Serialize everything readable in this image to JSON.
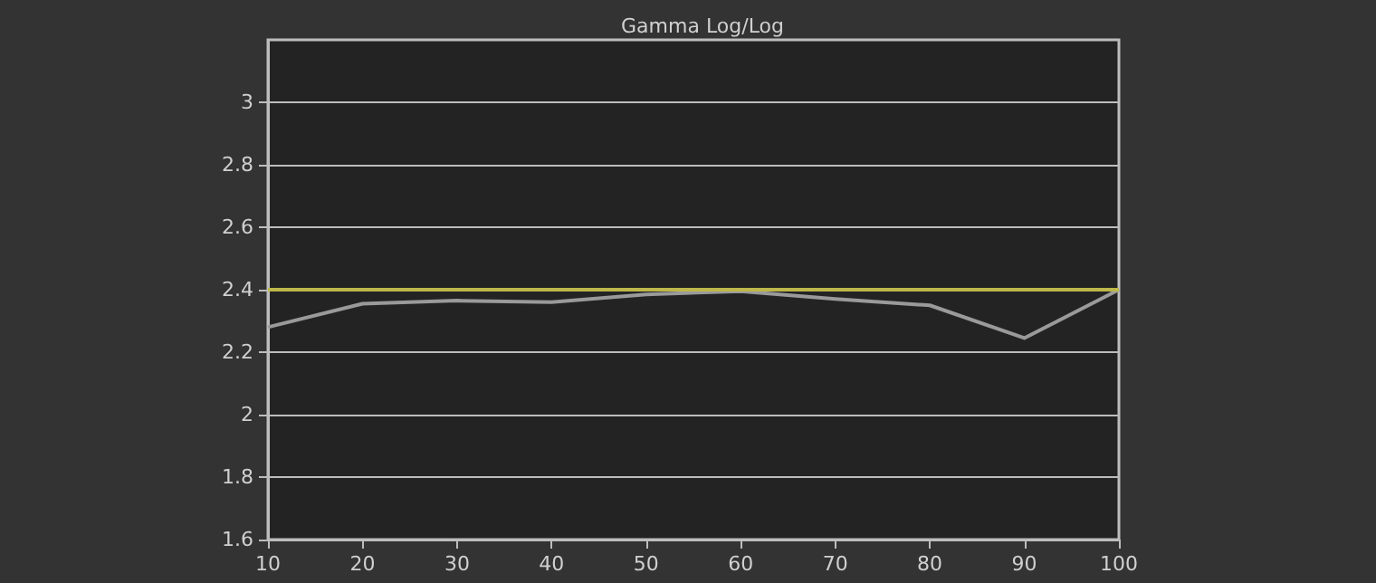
{
  "chart_data": {
    "type": "line",
    "title": "Gamma Log/Log",
    "x": [
      10,
      20,
      30,
      40,
      50,
      60,
      70,
      80,
      90,
      100
    ],
    "series": [
      {
        "color": "#9a9a9a",
        "values": [
          2.28,
          2.355,
          2.365,
          2.36,
          2.385,
          2.395,
          2.37,
          2.35,
          2.245,
          2.4
        ]
      }
    ],
    "xlim": [
      10,
      100
    ],
    "xticks": [
      10,
      20,
      30,
      40,
      50,
      60,
      70,
      80,
      90,
      100
    ],
    "ylim": [
      1.6,
      3.2
    ],
    "yticks": [
      1.6,
      1.8,
      2,
      2.2,
      2.4,
      2.6,
      2.8,
      3
    ],
    "ref_lines": [
      {
        "axis": "y",
        "value": 2.4,
        "color": "#bdb84a"
      }
    ],
    "grid": "y",
    "marker": "none",
    "line_style": "solid"
  }
}
